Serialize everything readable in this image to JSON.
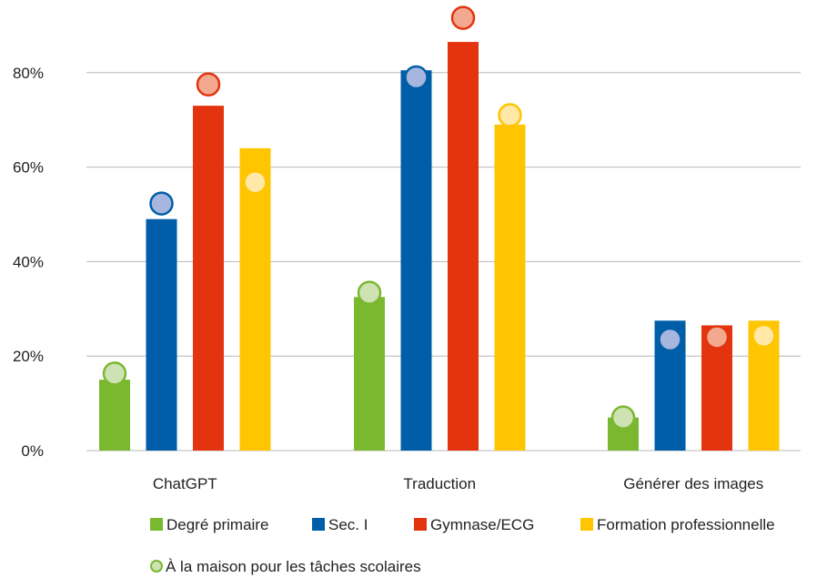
{
  "chart_data": {
    "type": "bar",
    "categories": [
      "ChatGPT",
      "Traduction",
      "Générer des images"
    ],
    "y_ticks": [
      "0%",
      "20%",
      "40%",
      "60%",
      "80%"
    ],
    "ylim": [
      0,
      90
    ],
    "grid": true,
    "legend_placement": "bottom",
    "series": [
      {
        "name": "Degré primaire",
        "color": "#7ab830",
        "marker_color": "#cfe2b3",
        "marker_edge": "#7ab830",
        "values": [
          15,
          32.5,
          7
        ],
        "home_values": [
          16.3,
          33.4,
          7
        ]
      },
      {
        "name": "Sec. I",
        "color": "#005ea8",
        "marker_color": "#a6b6de",
        "marker_edge": "#005ea8",
        "values": [
          49,
          80.5,
          27.5
        ],
        "home_values": [
          52.3,
          79,
          23.5
        ]
      },
      {
        "name": "Gymnase/ECG",
        "color": "#e3340f",
        "marker_color": "#f2a98f",
        "marker_edge": "#e3340f",
        "values": [
          73,
          86.5,
          26.5
        ],
        "home_values": [
          77.5,
          91.6,
          24
        ]
      },
      {
        "name": "Formation professionnelle",
        "color": "#fec500",
        "marker_color": "#ffe8a8",
        "marker_edge": "#fec500",
        "values": [
          64,
          69,
          27.5
        ],
        "home_values": [
          56.8,
          71,
          24.3
        ]
      }
    ],
    "marker_legend": "À la maison pour les tâches scolaires"
  }
}
